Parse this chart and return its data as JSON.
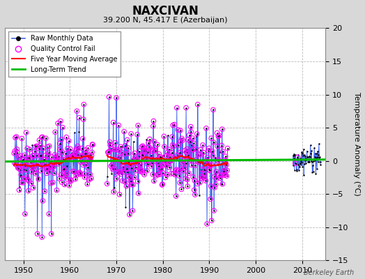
{
  "title": "NAXCIVAN",
  "subtitle": "39.200 N, 45.417 E (Azerbaijan)",
  "ylabel": "Temperature Anomaly (°C)",
  "watermark": "Berkeley Earth",
  "xlim": [
    1946,
    2015
  ],
  "ylim": [
    -15,
    20
  ],
  "yticks": [
    -15,
    -10,
    -5,
    0,
    5,
    10,
    15,
    20
  ],
  "xticks": [
    1950,
    1960,
    1970,
    1980,
    1990,
    2000,
    2010
  ],
  "bg_color": "#d8d8d8",
  "plot_bg_color": "#ffffff",
  "raw_line_color": "#4466ee",
  "raw_dot_color": "#000000",
  "qc_fail_color": "#ff00ff",
  "moving_avg_color": "#ff0000",
  "trend_color": "#00bb00",
  "legend_labels": [
    "Raw Monthly Data",
    "Quality Control Fail",
    "Five Year Moving Average",
    "Long-Term Trend"
  ],
  "period1_start": 1948,
  "period1_end": 1964,
  "period2_start": 1968,
  "period2_end": 1993,
  "period3_start": 2008,
  "period3_end": 2013
}
